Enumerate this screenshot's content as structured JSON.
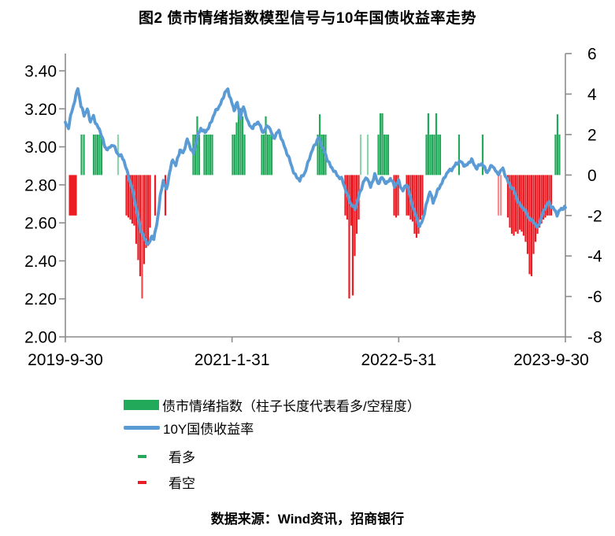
{
  "title": "图2  债市情绪指数模型信号与10年国债收益率走势",
  "source": "数据来源：Wind资讯，招商银行",
  "legend": {
    "sentiment_label": "债市情绪指数（柱子长度代表看多/空程度）",
    "yield_label": "10Y国债收益率",
    "bullish_label": "看多",
    "bearish_label": "看空"
  },
  "colors": {
    "bullish_green": "#22A95A",
    "bearish_red": "#EC1C24",
    "yield_blue": "#5B9BD5",
    "axis_gray": "#8C8C8C",
    "text_black": "#000000"
  },
  "chart_data": {
    "type": "bar+line combo, dual axis",
    "title": "图2  债市情绪指数模型信号与10年国债收益率走势",
    "x_axis": {
      "start_date": "2019-9-30",
      "end_date": "2023-9-30",
      "unit": "months since 2019-9-30",
      "tick_labels": [
        "2019-9-30",
        "2021-1-31",
        "2022-5-31",
        "2023-9-30"
      ],
      "tick_months": [
        0,
        16,
        32,
        48
      ]
    },
    "left_axis": {
      "series": "10Y国债收益率 (%)",
      "ticks": [
        "3.40",
        "3.20",
        "3.00",
        "2.80",
        "2.60",
        "2.40",
        "2.20",
        "2.00"
      ],
      "tick_values": [
        3.4,
        3.2,
        3.0,
        2.8,
        2.6,
        2.4,
        2.2,
        2.0
      ],
      "min": 2.0,
      "max": 3.49
    },
    "right_axis": {
      "series": "债市情绪指数",
      "ticks": [
        "6",
        "4",
        "2",
        "0",
        "-2",
        "-4",
        "-6",
        "-8"
      ],
      "tick_values": [
        6,
        4,
        2,
        0,
        -2,
        -4,
        -6,
        -8
      ],
      "min": -8,
      "max": 6
    },
    "line_series": {
      "name": "10Y国债收益率",
      "axis": "left",
      "points": [
        [
          0,
          3.13
        ],
        [
          0.3,
          3.1
        ],
        [
          0.6,
          3.18
        ],
        [
          1.0,
          3.27
        ],
        [
          1.2,
          3.31
        ],
        [
          1.5,
          3.21
        ],
        [
          1.8,
          3.17
        ],
        [
          2.1,
          3.2
        ],
        [
          2.4,
          3.13
        ],
        [
          2.7,
          3.16
        ],
        [
          3.0,
          3.12
        ],
        [
          3.4,
          3.07
        ],
        [
          3.8,
          3.0
        ],
        [
          4.2,
          2.99
        ],
        [
          4.6,
          3.01
        ],
        [
          5.0,
          2.97
        ],
        [
          5.6,
          2.93
        ],
        [
          6.0,
          2.86
        ],
        [
          6.4,
          2.78
        ],
        [
          6.8,
          2.68
        ],
        [
          7.2,
          2.57
        ],
        [
          7.6,
          2.51
        ],
        [
          8.0,
          2.49
        ],
        [
          8.3,
          2.53
        ],
        [
          8.5,
          2.51
        ],
        [
          8.8,
          2.6
        ],
        [
          9.1,
          2.74
        ],
        [
          9.4,
          2.82
        ],
        [
          9.7,
          2.77
        ],
        [
          10.0,
          2.87
        ],
        [
          10.3,
          2.93
        ],
        [
          10.6,
          2.9
        ],
        [
          11.0,
          2.99
        ],
        [
          11.3,
          2.96
        ],
        [
          11.7,
          3.04
        ],
        [
          12.0,
          3.0
        ],
        [
          12.3,
          2.96
        ],
        [
          12.7,
          3.06
        ],
        [
          13.0,
          3.1
        ],
        [
          13.4,
          3.07
        ],
        [
          13.8,
          3.11
        ],
        [
          14.2,
          3.16
        ],
        [
          14.6,
          3.2
        ],
        [
          15.0,
          3.24
        ],
        [
          15.3,
          3.28
        ],
        [
          15.6,
          3.3
        ],
        [
          15.9,
          3.25
        ],
        [
          16.2,
          3.19
        ],
        [
          16.5,
          3.23
        ],
        [
          16.8,
          3.16
        ],
        [
          17.1,
          3.21
        ],
        [
          17.5,
          3.13
        ],
        [
          18.0,
          3.1
        ],
        [
          18.5,
          3.13
        ],
        [
          19.0,
          3.08
        ],
        [
          19.5,
          3.11
        ],
        [
          20.0,
          3.05
        ],
        [
          20.5,
          3.08
        ],
        [
          21.0,
          3.01
        ],
        [
          21.5,
          2.93
        ],
        [
          22.0,
          2.86
        ],
        [
          22.5,
          2.82
        ],
        [
          23.0,
          2.87
        ],
        [
          23.5,
          2.95
        ],
        [
          24.0,
          3.02
        ],
        [
          24.3,
          3.05
        ],
        [
          24.7,
          2.99
        ],
        [
          25.0,
          2.96
        ],
        [
          25.5,
          2.89
        ],
        [
          26.0,
          2.86
        ],
        [
          26.5,
          2.83
        ],
        [
          27.0,
          2.76
        ],
        [
          27.5,
          2.69
        ],
        [
          27.8,
          2.67
        ],
        [
          28.2,
          2.75
        ],
        [
          28.6,
          2.81
        ],
        [
          29.0,
          2.84
        ],
        [
          29.3,
          2.79
        ],
        [
          29.7,
          2.85
        ],
        [
          30.0,
          2.81
        ],
        [
          30.4,
          2.84
        ],
        [
          30.8,
          2.8
        ],
        [
          31.2,
          2.84
        ],
        [
          31.6,
          2.79
        ],
        [
          32.0,
          2.82
        ],
        [
          32.4,
          2.77
        ],
        [
          32.8,
          2.8
        ],
        [
          33.2,
          2.72
        ],
        [
          33.6,
          2.64
        ],
        [
          34.0,
          2.58
        ],
        [
          34.3,
          2.62
        ],
        [
          34.7,
          2.7
        ],
        [
          35.0,
          2.77
        ],
        [
          35.3,
          2.71
        ],
        [
          35.7,
          2.76
        ],
        [
          36.0,
          2.8
        ],
        [
          36.5,
          2.85
        ],
        [
          37.0,
          2.88
        ],
        [
          37.5,
          2.91
        ],
        [
          38.0,
          2.92
        ],
        [
          38.5,
          2.9
        ],
        [
          39.0,
          2.93
        ],
        [
          39.5,
          2.89
        ],
        [
          40.0,
          2.91
        ],
        [
          40.5,
          2.87
        ],
        [
          41.0,
          2.9
        ],
        [
          41.5,
          2.86
        ],
        [
          42.0,
          2.88
        ],
        [
          42.5,
          2.82
        ],
        [
          43.0,
          2.77
        ],
        [
          43.5,
          2.71
        ],
        [
          44.0,
          2.67
        ],
        [
          44.5,
          2.63
        ],
        [
          45.0,
          2.6
        ],
        [
          45.3,
          2.57
        ],
        [
          45.6,
          2.62
        ],
        [
          46.0,
          2.67
        ],
        [
          46.4,
          2.71
        ],
        [
          46.8,
          2.68
        ],
        [
          47.2,
          2.64
        ],
        [
          47.6,
          2.68
        ],
        [
          48.0,
          2.68
        ]
      ]
    },
    "bar_series": {
      "name": "债市情绪指数",
      "axis": "right",
      "bar_format": "[month, signed_value, alpha]",
      "bullish": [
        [
          1.55,
          2,
          1
        ],
        [
          1.78,
          2,
          1
        ],
        [
          2.72,
          2,
          1
        ],
        [
          2.91,
          2,
          1
        ],
        [
          3.1,
          2,
          1
        ],
        [
          3.29,
          2,
          1
        ],
        [
          3.48,
          2,
          1
        ],
        [
          5.06,
          2,
          0.5
        ],
        [
          12.28,
          2,
          1
        ],
        [
          12.47,
          2,
          1
        ],
        [
          12.66,
          2.9,
          1
        ],
        [
          12.85,
          2,
          1
        ],
        [
          13.34,
          2,
          1
        ],
        [
          13.53,
          2,
          1
        ],
        [
          13.72,
          2,
          1
        ],
        [
          13.91,
          2,
          1
        ],
        [
          14.1,
          2,
          1
        ],
        [
          16.06,
          2,
          1
        ],
        [
          16.25,
          2,
          1
        ],
        [
          16.44,
          2.6,
          1
        ],
        [
          16.63,
          3.3,
          1
        ],
        [
          16.82,
          3.3,
          1
        ],
        [
          17.01,
          2.9,
          1
        ],
        [
          17.2,
          2,
          1
        ],
        [
          18.86,
          2,
          1
        ],
        [
          19.05,
          2,
          1
        ],
        [
          19.24,
          2.9,
          1
        ],
        [
          19.43,
          2,
          1
        ],
        [
          19.62,
          2,
          1
        ],
        [
          19.81,
          2,
          1
        ],
        [
          24.23,
          2,
          1
        ],
        [
          24.42,
          3.0,
          1
        ],
        [
          24.61,
          2,
          1
        ],
        [
          24.79,
          2,
          1
        ],
        [
          24.98,
          2,
          1
        ],
        [
          28.35,
          2,
          0.5
        ],
        [
          29.03,
          2,
          0.5
        ],
        [
          30.05,
          2,
          1
        ],
        [
          30.24,
          3.05,
          1
        ],
        [
          30.43,
          3.05,
          1
        ],
        [
          30.62,
          2,
          1
        ],
        [
          30.81,
          2,
          1
        ],
        [
          30.99,
          2,
          1
        ],
        [
          34.66,
          2,
          1
        ],
        [
          34.84,
          3.05,
          1
        ],
        [
          35.03,
          2,
          1
        ],
        [
          35.22,
          2,
          1
        ],
        [
          35.41,
          2,
          1
        ],
        [
          35.6,
          3.05,
          1
        ],
        [
          35.79,
          2,
          1
        ],
        [
          35.98,
          2,
          1
        ],
        [
          37.79,
          2,
          1
        ],
        [
          40.06,
          2,
          1
        ],
        [
          47.05,
          2,
          1
        ],
        [
          47.24,
          3.0,
          1
        ],
        [
          47.43,
          2,
          1
        ]
      ],
      "bearish": [
        [
          0.42,
          -2,
          1
        ],
        [
          0.57,
          -2,
          1
        ],
        [
          0.72,
          -2,
          1
        ],
        [
          0.87,
          -2,
          1
        ],
        [
          1.02,
          -2,
          1
        ],
        [
          5.86,
          -2,
          1
        ],
        [
          6.05,
          -2.1,
          1
        ],
        [
          6.24,
          -2.2,
          1
        ],
        [
          6.42,
          -2.4,
          1
        ],
        [
          6.61,
          -2.5,
          1
        ],
        [
          6.8,
          -3.4,
          1
        ],
        [
          6.99,
          -4.2,
          1
        ],
        [
          7.18,
          -5.0,
          1
        ],
        [
          7.37,
          -6.1,
          0.8
        ],
        [
          7.56,
          -4.4,
          1
        ],
        [
          7.75,
          -3.6,
          1
        ],
        [
          7.94,
          -3.5,
          1
        ],
        [
          8.13,
          -2.6,
          1
        ],
        [
          8.62,
          -2,
          1
        ],
        [
          9.6,
          -2,
          1
        ],
        [
          26.87,
          -2,
          1
        ],
        [
          27.06,
          -2.2,
          1
        ],
        [
          27.25,
          -6.1,
          1
        ],
        [
          27.44,
          -2.5,
          1
        ],
        [
          27.59,
          -5.95,
          1
        ],
        [
          27.78,
          -4.0,
          1
        ],
        [
          27.97,
          -2.9,
          1
        ],
        [
          28.16,
          -2.2,
          1
        ],
        [
          31.56,
          -2,
          1
        ],
        [
          31.75,
          -2.1,
          1
        ],
        [
          31.94,
          -2,
          1
        ],
        [
          32.77,
          -2,
          1
        ],
        [
          32.95,
          -2,
          1
        ],
        [
          33.14,
          -2.2,
          1
        ],
        [
          33.33,
          -2.3,
          1
        ],
        [
          33.52,
          -2.9,
          1
        ],
        [
          33.71,
          -3.1,
          1
        ],
        [
          33.9,
          -2.9,
          1
        ],
        [
          34.09,
          -2.2,
          1
        ],
        [
          34.28,
          -2,
          1
        ],
        [
          41.57,
          -2,
          0.5
        ],
        [
          41.8,
          -2,
          0.5
        ],
        [
          42.48,
          -2.1,
          1
        ],
        [
          42.67,
          -2.6,
          1
        ],
        [
          42.86,
          -2.9,
          1
        ],
        [
          43.05,
          -3.0,
          1
        ],
        [
          43.24,
          -2.8,
          1
        ],
        [
          43.43,
          -2.9,
          1
        ],
        [
          43.62,
          -2.7,
          1
        ],
        [
          43.8,
          -2.8,
          1
        ],
        [
          43.99,
          -3.0,
          1
        ],
        [
          44.18,
          -3.3,
          1
        ],
        [
          44.37,
          -3.9,
          1
        ],
        [
          44.56,
          -4.9,
          1
        ],
        [
          44.75,
          -5.0,
          1
        ],
        [
          44.94,
          -3.9,
          1
        ],
        [
          45.13,
          -3.3,
          1
        ],
        [
          45.32,
          -2.9,
          1
        ],
        [
          45.51,
          -2.6,
          1
        ],
        [
          45.7,
          -2.4,
          1
        ],
        [
          45.88,
          -2.2,
          1
        ],
        [
          46.07,
          -2.1,
          1
        ],
        [
          46.26,
          -2.0,
          1
        ],
        [
          46.45,
          -2.0,
          1
        ],
        [
          46.64,
          -2.0,
          1
        ]
      ]
    },
    "legend_entries": [
      "债市情绪指数（柱子长度代表看多/空程度）",
      "10Y国债收益率",
      "看多",
      "看空"
    ],
    "legend_position": "bottom-left",
    "grid": false
  }
}
